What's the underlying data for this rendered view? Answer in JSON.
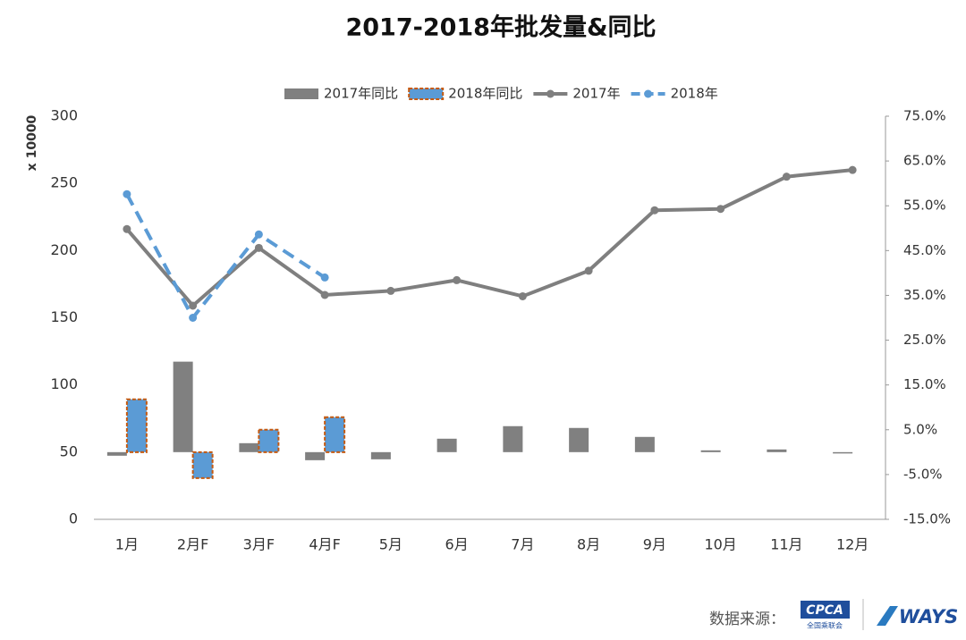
{
  "chart_data": {
    "type": "combo",
    "title": "2017-2018年批发量&同比",
    "y_label": "x 10000",
    "categories": [
      "1月",
      "2月F",
      "3月F",
      "4月F",
      "5月",
      "6月",
      "7月",
      "8月",
      "9月",
      "10月",
      "11月",
      "12月"
    ],
    "series": [
      {
        "name": "2017年同比",
        "type": "bar",
        "axis": "y2",
        "color": "#808080",
        "values": [
          -0.8,
          20.2,
          2.0,
          -1.8,
          -1.6,
          3.0,
          5.8,
          5.4,
          3.4,
          0.4,
          0.6,
          -0.3
        ]
      },
      {
        "name": "2018年同比",
        "type": "bar",
        "axis": "y2",
        "color": "#5b9bd5",
        "border": "#c55a11",
        "values": [
          11.8,
          -5.8,
          5.0,
          7.8,
          null,
          null,
          null,
          null,
          null,
          null,
          null,
          null
        ]
      },
      {
        "name": "2017年",
        "type": "line",
        "color": "#7f7f7f",
        "values": [
          216,
          159,
          202,
          167,
          170,
          178,
          166,
          185,
          230,
          231,
          255,
          260
        ]
      },
      {
        "name": "2018年",
        "type": "line",
        "dashed": true,
        "color": "#5b9bd5",
        "values": [
          242,
          150,
          212,
          180,
          null,
          null,
          null,
          null,
          null,
          null,
          null,
          null
        ]
      }
    ],
    "ylim": [
      0,
      300
    ],
    "yticks": [
      0,
      50,
      100,
      150,
      200,
      250,
      300
    ],
    "y2lim": [
      -15,
      75
    ],
    "y2ticks": [
      {
        "value": -15,
        "label": "-15.0%"
      },
      {
        "value": -5,
        "label": "-5.0%"
      },
      {
        "value": 5,
        "label": "5.0%"
      },
      {
        "value": 15,
        "label": "15.0%"
      },
      {
        "value": 25,
        "label": "25.0%"
      },
      {
        "value": 35,
        "label": "35.0%"
      },
      {
        "value": 45,
        "label": "45.0%"
      },
      {
        "value": 55,
        "label": "55.0%"
      },
      {
        "value": 65,
        "label": "65.0%"
      },
      {
        "value": 75,
        "label": "75.0%"
      }
    ],
    "legend": "top",
    "source": {
      "label": "数据来源：",
      "logo1": "CPCA",
      "logo1_sub": "全国乘联会",
      "logo2": "WAYS"
    }
  }
}
